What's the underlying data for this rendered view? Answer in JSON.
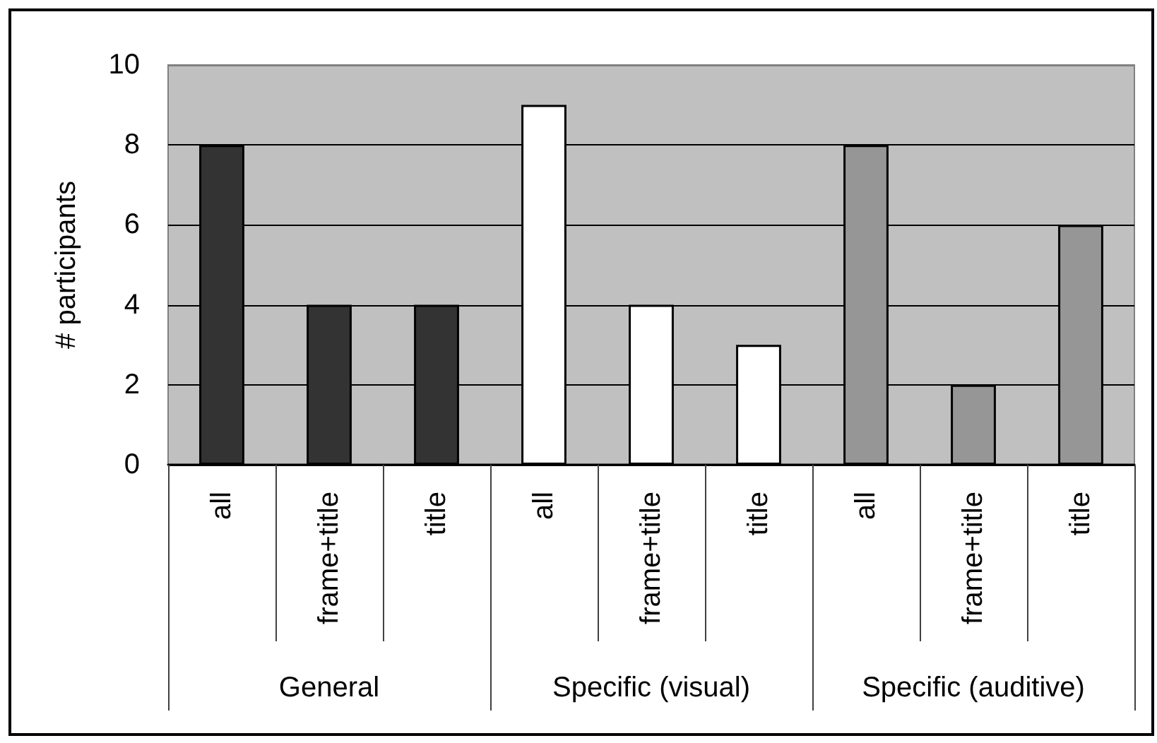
{
  "chart_data": {
    "type": "bar",
    "ylabel": "# participants",
    "categories": [
      "all",
      "frame+title",
      "title",
      "all",
      "frame+title",
      "title",
      "all",
      "frame+title",
      "title"
    ],
    "values": [
      8,
      4,
      4,
      9,
      4,
      3,
      8,
      2,
      6
    ],
    "colors": [
      "#333333",
      "#333333",
      "#333333",
      "#ffffff",
      "#ffffff",
      "#ffffff",
      "#969696",
      "#969696",
      "#969696"
    ],
    "annotations": [
      "General",
      "Specific (visual)",
      "Specific (auditive)"
    ],
    "ylim": [
      0,
      10
    ],
    "yticks": [
      0,
      2,
      4,
      6,
      8,
      10
    ],
    "grid": "y"
  }
}
